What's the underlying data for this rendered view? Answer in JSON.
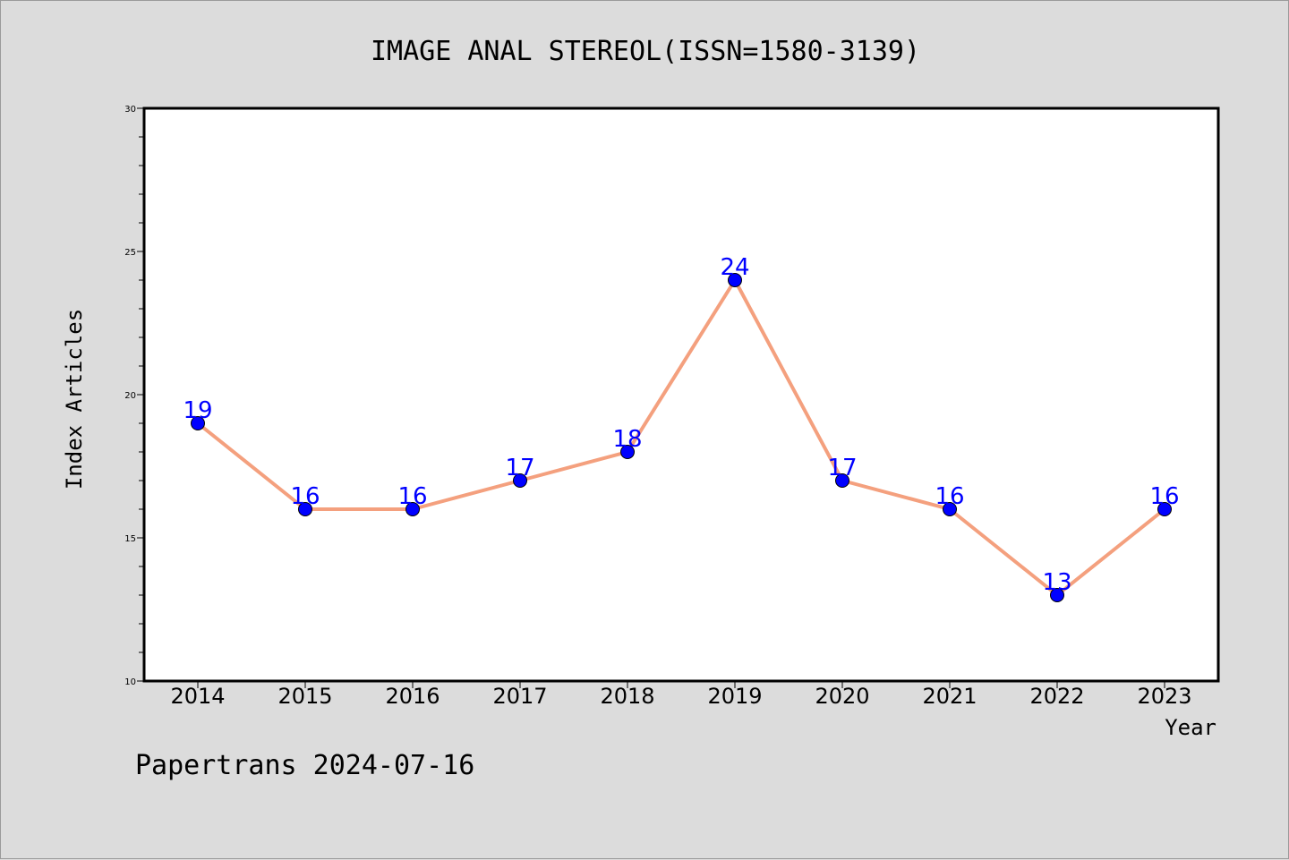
{
  "footer": "Papertrans 2024-07-16",
  "colors": {
    "line": "#f4a07e",
    "marker": "#0000ff",
    "data_label": "#0000ff",
    "plot_bg": "#ffffff",
    "page_bg": "#dcdcdc"
  },
  "chart_data": {
    "type": "line",
    "title": "IMAGE ANAL STEREOL(ISSN=1580-3139)",
    "xlabel": "Year",
    "ylabel": "Index Articles",
    "categories": [
      "2014",
      "2015",
      "2016",
      "2017",
      "2018",
      "2019",
      "2020",
      "2021",
      "2022",
      "2023"
    ],
    "series": [
      {
        "values": [
          19,
          16,
          16,
          17,
          18,
          24,
          17,
          16,
          13,
          16
        ]
      }
    ],
    "ylim": [
      10,
      30
    ],
    "yticks": [
      "10",
      "15",
      "20",
      "25",
      "30"
    ],
    "y_minor_step": 1,
    "grid": false,
    "legend": "none",
    "data_labels": true
  }
}
